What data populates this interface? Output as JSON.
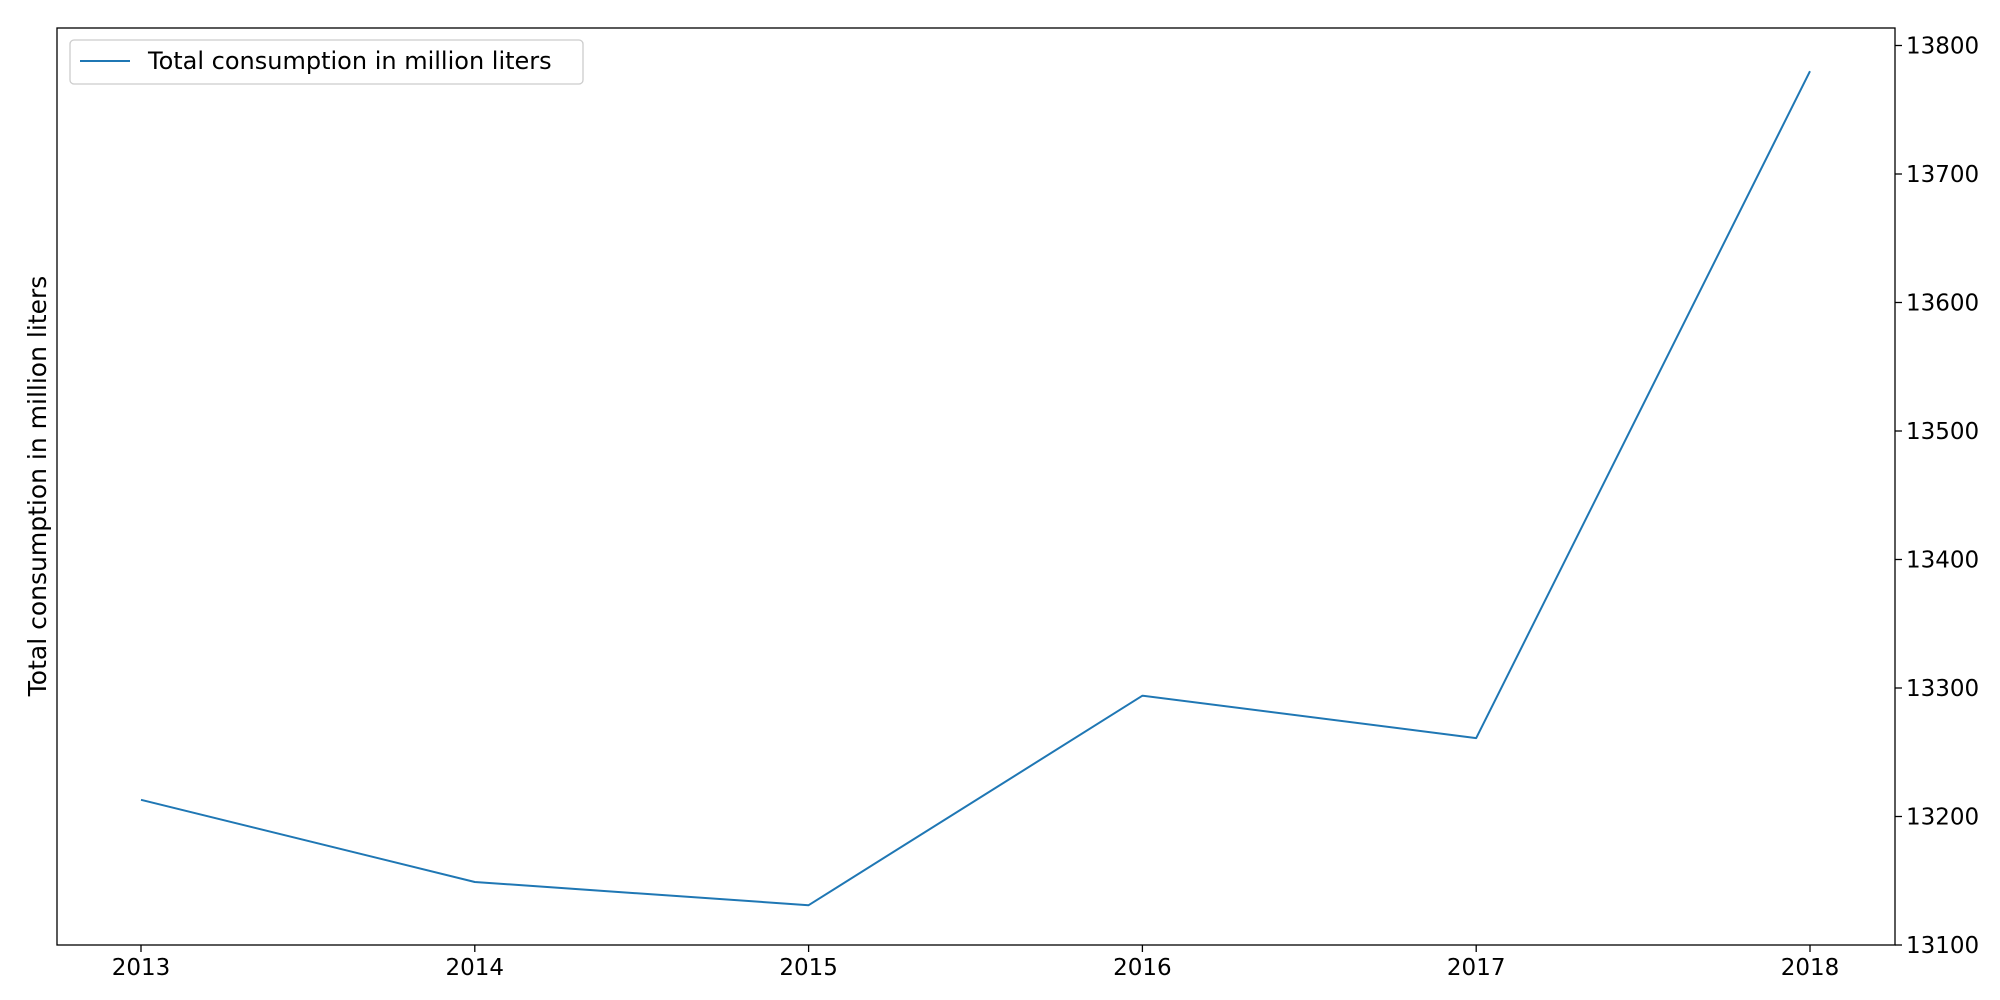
{
  "chart_data": {
    "type": "line",
    "x": [
      "2013",
      "2014",
      "2015",
      "2016",
      "2017",
      "2018"
    ],
    "series": [
      {
        "name": "Total consumption in million liters",
        "values": [
          13213,
          13149,
          13131,
          13294,
          13261,
          13780
        ],
        "color": "#1f77b4"
      }
    ],
    "ylabel": "Total consumption in million liters",
    "xlabel": "",
    "ylim": [
      13100,
      13810
    ],
    "yticks": [
      "13100",
      "13200",
      "13300",
      "13400",
      "13500",
      "13600",
      "13700",
      "13800"
    ],
    "y_axis_side": "right",
    "legend_position": "top-left",
    "grid": false
  }
}
